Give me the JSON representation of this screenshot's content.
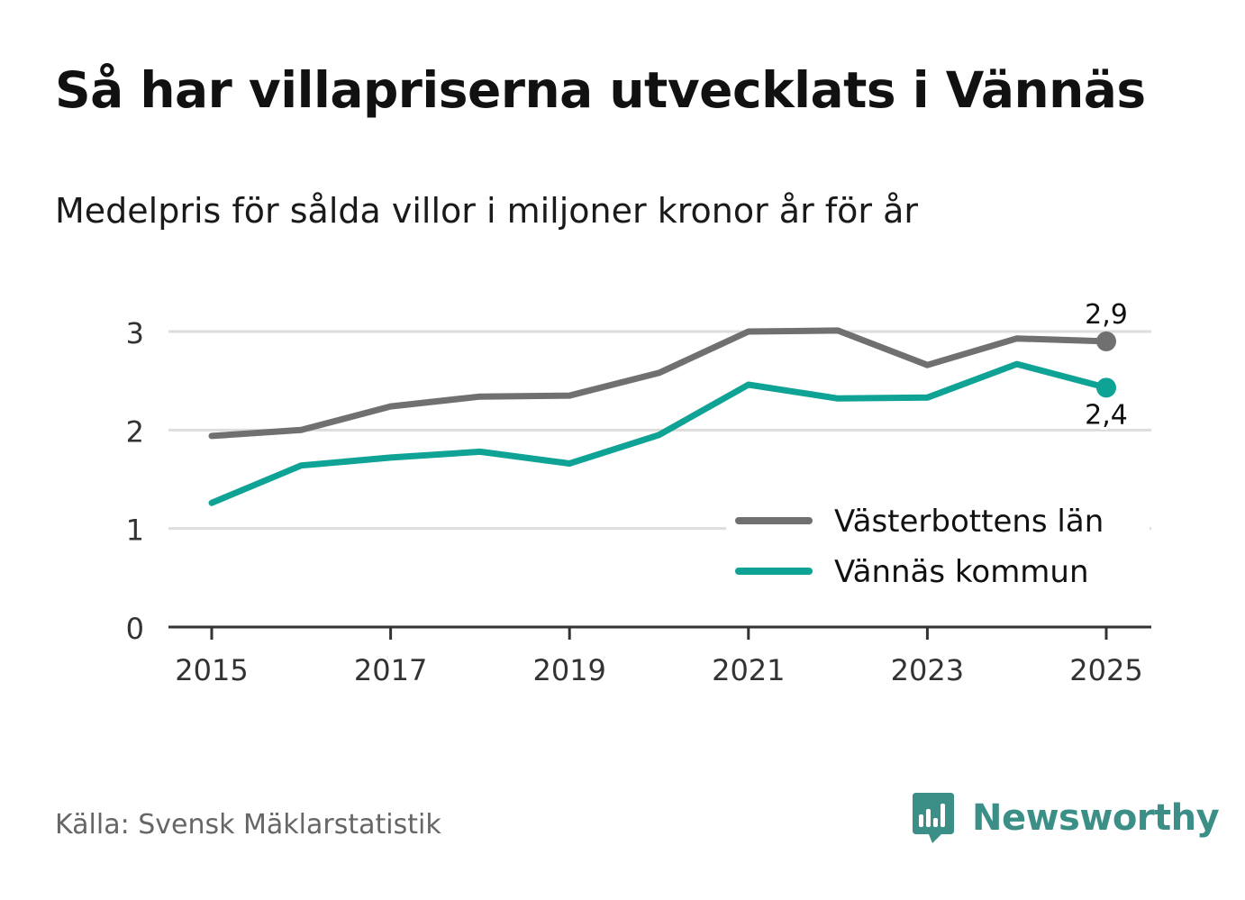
{
  "title": "Så har villapriserna utvecklats i Vännäs",
  "subtitle": "Medelpris för sålda villor i miljoner kronor år för år",
  "source": "Källa: Svensk Mäklarstatistik",
  "brand": "Newsworthy",
  "colors": {
    "lan": "#707070",
    "kommun": "#0fa396",
    "grid": "#dddddd",
    "axis": "#333333",
    "brand": "#3b8f87"
  },
  "chart_data": {
    "type": "line",
    "title": "Så har villapriserna utvecklats i Vännäs",
    "subtitle": "Medelpris för sålda villor i miljoner kronor år för år",
    "xlabel": "",
    "ylabel": "",
    "x": [
      2015,
      2016,
      2017,
      2018,
      2019,
      2020,
      2021,
      2022,
      2023,
      2024,
      2025
    ],
    "xticks": [
      "2015",
      "2017",
      "2019",
      "2021",
      "2023",
      "2025"
    ],
    "yticks": [
      "0",
      "1",
      "2",
      "3"
    ],
    "ylim": [
      0,
      3.3
    ],
    "grid": true,
    "legend_position": "bottom-right",
    "series": [
      {
        "name": "Västerbottens län",
        "color": "#707070",
        "values": [
          1.94,
          2.0,
          2.24,
          2.34,
          2.35,
          2.58,
          3.0,
          3.01,
          2.66,
          2.93,
          2.9
        ],
        "end_label": "2,9"
      },
      {
        "name": "Vännäs kommun",
        "color": "#0fa396",
        "values": [
          1.26,
          1.64,
          1.72,
          1.78,
          1.66,
          1.95,
          2.46,
          2.32,
          2.33,
          2.67,
          2.43
        ],
        "end_label": "2,4"
      }
    ]
  }
}
